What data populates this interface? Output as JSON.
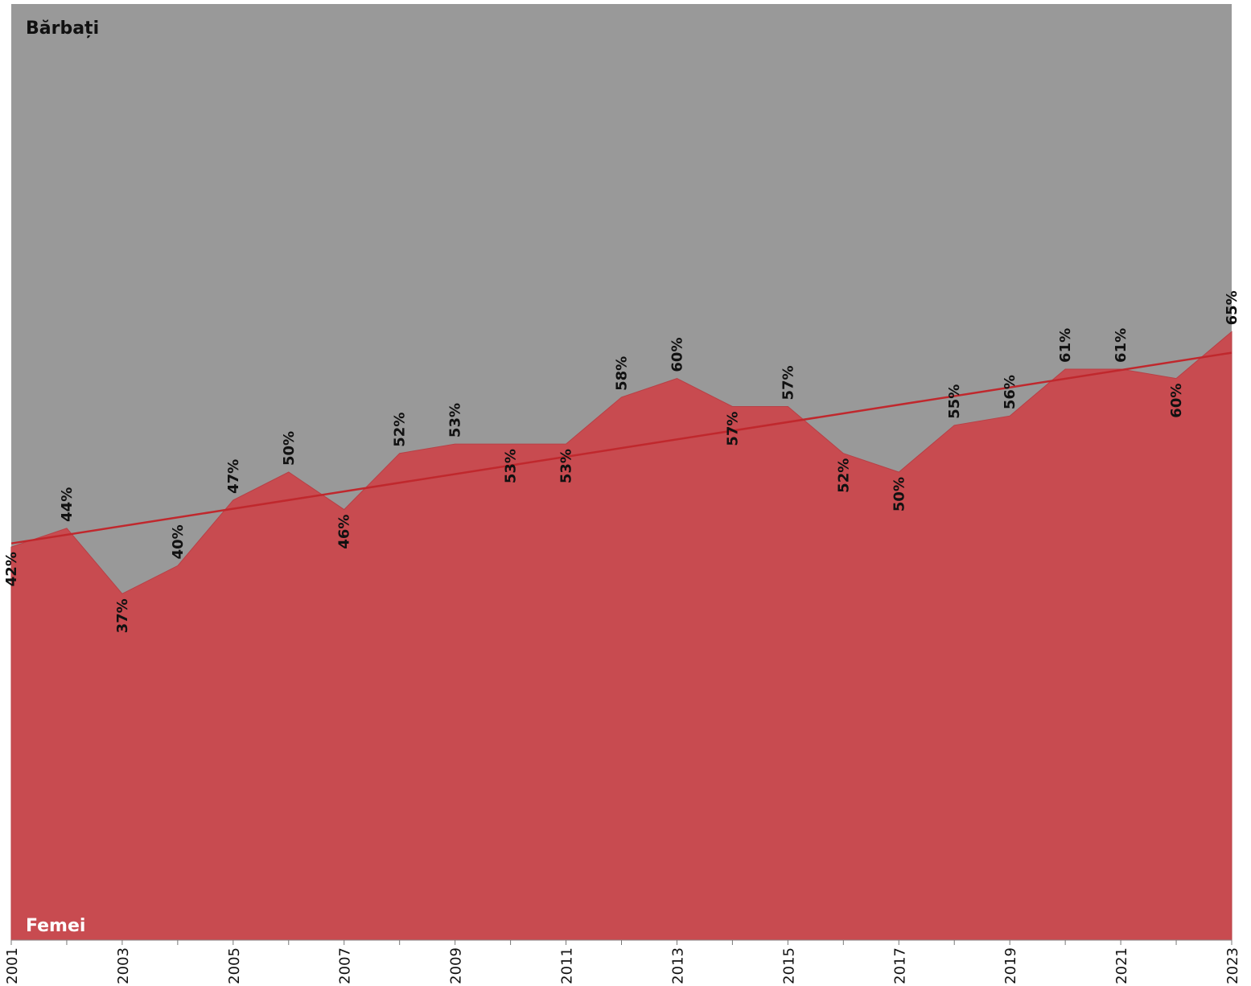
{
  "chart_data": {
    "type": "area",
    "x": [
      "2001",
      "2002",
      "2003",
      "2004",
      "2005",
      "2006",
      "2007",
      "2008",
      "2009",
      "2010",
      "2011",
      "2012",
      "2013",
      "2014",
      "2015",
      "2016",
      "2017",
      "2018",
      "2019",
      "2020",
      "2021",
      "2022",
      "2023"
    ],
    "x_tick_labels": [
      "2001",
      "2003",
      "2005",
      "2007",
      "2009",
      "2011",
      "2013",
      "2015",
      "2017",
      "2019",
      "2021",
      "2023"
    ],
    "series": [
      {
        "name": "Femei",
        "values": [
          42,
          44,
          37,
          40,
          47,
          50,
          46,
          52,
          53,
          53,
          53,
          58,
          60,
          57,
          57,
          52,
          50,
          55,
          56,
          61,
          61,
          60,
          65
        ]
      }
    ],
    "data_labels": [
      "42%",
      "44%",
      "37%",
      "40%",
      "47%",
      "50%",
      "46%",
      "52%",
      "53%",
      "53%",
      "53%",
      "58%",
      "60%",
      "57%",
      "57%",
      "52%",
      "50%",
      "55%",
      "56%",
      "61%",
      "61%",
      "60%",
      "65%"
    ],
    "trendline": {
      "type": "linear",
      "color": "#c0282d"
    },
    "background_label": "Bărbați",
    "foreground_label": "Femei",
    "ylim": [
      0,
      100
    ],
    "grid": false,
    "colors": {
      "area": "#c84b50",
      "background": "#999999",
      "trendline": "#c0282d",
      "foreground_label": "#ffffff",
      "background_label": "#111111"
    }
  }
}
